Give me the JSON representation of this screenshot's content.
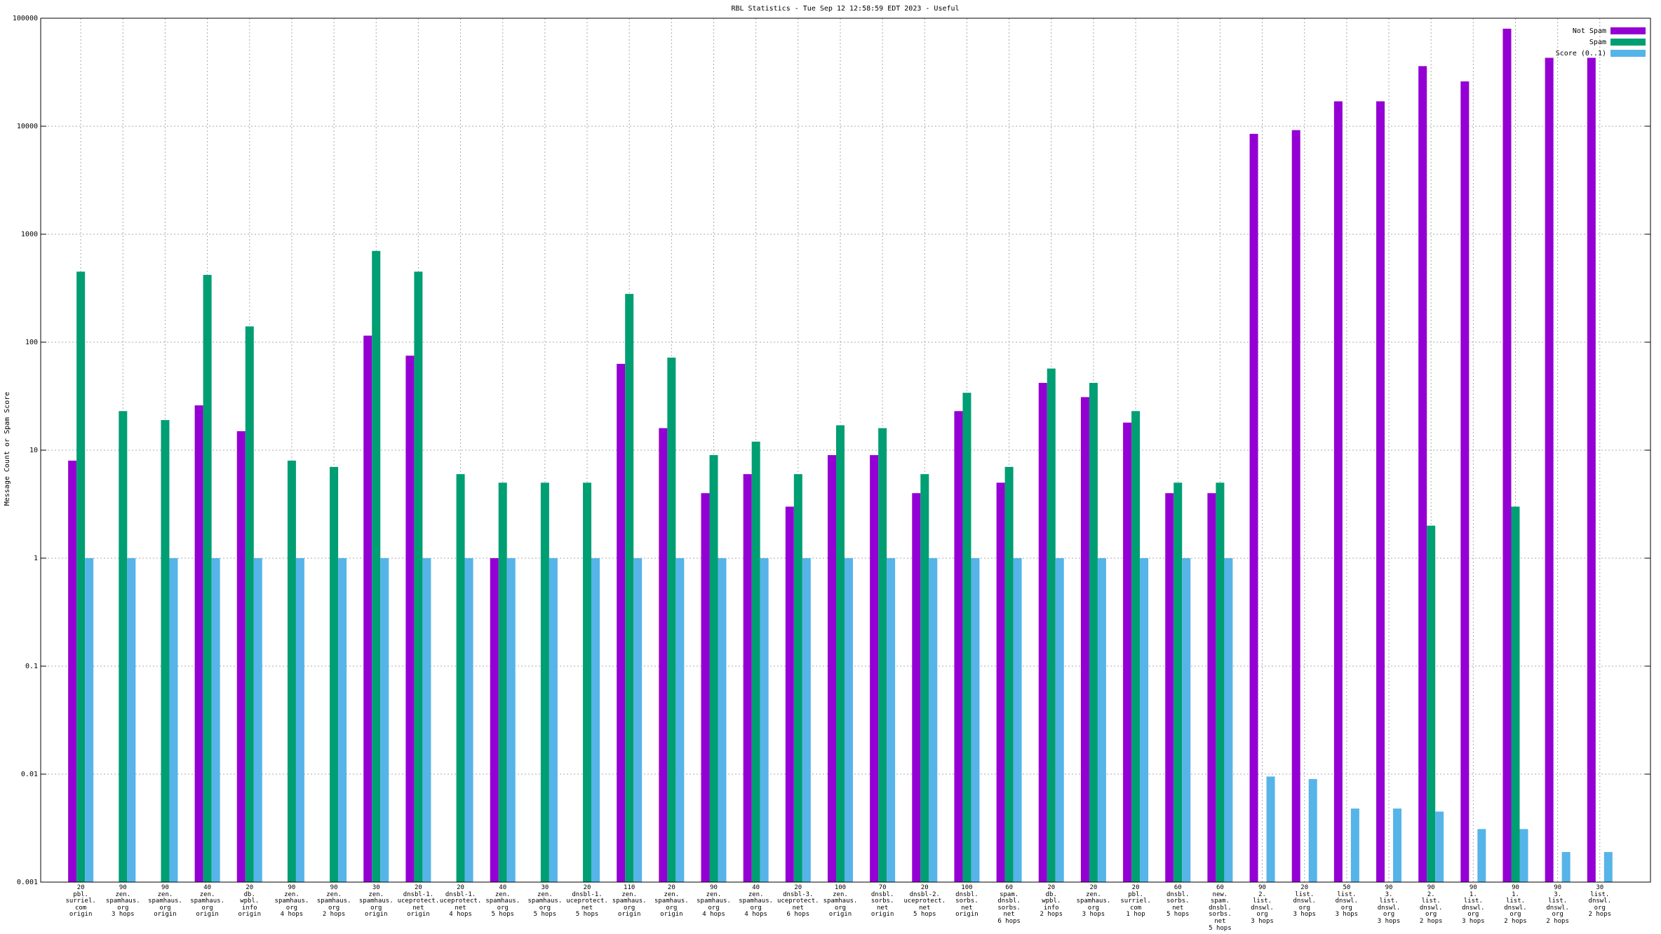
{
  "chart_data": {
    "type": "bar",
    "title": "RBL Statistics - Tue Sep 12 12:58:59 EDT 2023 - Useful",
    "y_label": "Message Count or Spam Score",
    "log_scale": true,
    "grid": true,
    "legend_position": "top-right",
    "ylim": [
      0.001,
      100000
    ],
    "yticks": [
      0.001,
      0.01,
      0.1,
      1,
      10,
      100,
      1000,
      10000,
      100000
    ],
    "categories": [
      "20\npbl.\nsurriel.\ncom\norigin",
      "90\nzen.\nspamhaus.\norg\n3 hops",
      "90\nzen.\nspamhaus.\norg\norigin",
      "40\nzen.\nspamhaus.\norg\norigin",
      "20\ndb.\nwpbl.\ninfo\norigin",
      "90\nzen.\nspamhaus.\norg\n4 hops",
      "90\nzen.\nspamhaus.\norg\n2 hops",
      "30\nzen.\nspamhaus.\norg\norigin",
      "20\ndnsbl-1.\nuceprotect.\nnet\norigin",
      "20\ndnsbl-1.\nuceprotect.\nnet\n4 hops",
      "40\nzen.\nspamhaus.\norg\n5 hops",
      "30\nzen.\nspamhaus.\norg\n5 hops",
      "20\ndnsbl-1.\nuceprotect.\nnet\n5 hops",
      "110\nzen.\nspamhaus.\norg\norigin",
      "20\nzen.\nspamhaus.\norg\norigin",
      "90\nzen.\nspamhaus.\norg\n4 hops",
      "40\nzen.\nspamhaus.\norg\n4 hops",
      "20\ndnsbl-3.\nuceprotect.\nnet\n6 hops",
      "100\nzen.\nspamhaus.\norg\norigin",
      "70\ndnsbl.\nsorbs.\nnet\norigin",
      "20\ndnsbl-2.\nuceprotect.\nnet\n5 hops",
      "100\ndnsbl.\nsorbs.\nnet\norigin",
      "60\nspam.\ndnsbl.\nsorbs.\nnet\n6 hops",
      "20\ndb.\nwpbl.\ninfo\n2 hops",
      "20\nzen.\nspamhaus.\norg\n3 hops",
      "20\npbl.\nsurriel.\ncom\n1 hop",
      "60\ndnsbl.\nsorbs.\nnet\n5 hops",
      "60\nnew.\nspam.\ndnsbl.\nsorbs.\nnet\n5 hops",
      "90\n2.\nlist.\ndnswl.\norg\n3 hops",
      "20\nlist.\ndnswl.\norg\n3 hops",
      "50\nlist.\ndnswl.\norg\n3 hops",
      "90\n3.\nlist.\ndnswl.\norg\n3 hops",
      "90\n2.\nlist.\ndnswl.\norg\n2 hops",
      "90\n1.\nlist.\ndnswl.\norg\n3 hops",
      "90\n1.\nlist.\ndnswl.\norg\n2 hops",
      "90\n3.\nlist.\ndnswl.\norg\n2 hops",
      "30\nlist.\ndnswl.\norg\n2 hops"
    ],
    "series": [
      {
        "name": "Not Spam",
        "color": "#9400d3",
        "values": [
          8,
          null,
          null,
          26,
          15,
          null,
          null,
          115,
          75,
          null,
          1,
          null,
          null,
          63,
          16,
          4,
          6,
          3,
          9,
          9,
          4,
          23,
          5,
          42,
          31,
          18,
          4,
          4,
          8500,
          9200,
          17000,
          17000,
          36000,
          26000,
          80000,
          43000,
          43000
        ]
      },
      {
        "name": "Spam",
        "color": "#009e73",
        "values": [
          450,
          23,
          19,
          420,
          140,
          8,
          7,
          700,
          450,
          6,
          5,
          5,
          5,
          280,
          72,
          9,
          12,
          6,
          17,
          16,
          6,
          34,
          7,
          57,
          42,
          23,
          5,
          5,
          null,
          null,
          null,
          null,
          2,
          null,
          3,
          null,
          null
        ]
      },
      {
        "name": "Score (0..1)",
        "color": "#56b4e9",
        "values": [
          1,
          1,
          1,
          1,
          1,
          1,
          1,
          1,
          1,
          1,
          1,
          1,
          1,
          1,
          1,
          1,
          1,
          1,
          1,
          1,
          1,
          1,
          1,
          1,
          1,
          1,
          1,
          1,
          0.0095,
          0.009,
          0.0048,
          0.0048,
          0.0045,
          0.0031,
          0.0031,
          0.0019,
          0.0019
        ]
      }
    ]
  }
}
